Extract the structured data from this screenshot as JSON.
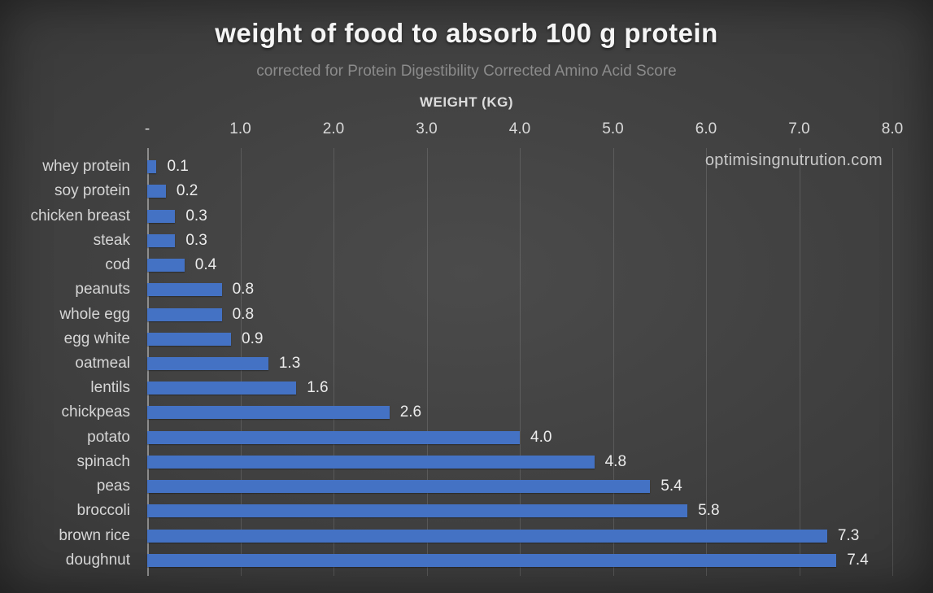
{
  "chart_data": {
    "type": "bar",
    "orientation": "horizontal",
    "title": "weight of food to absorb 100 g protein",
    "subtitle": "corrected for Protein Digestibility Corrected Amino Acid Score",
    "xlabel": "WEIGHT (KG)",
    "ylabel": "",
    "xlim": [
      0,
      8
    ],
    "tick_labels": [
      "-",
      "1.0",
      "2.0",
      "3.0",
      "4.0",
      "5.0",
      "6.0",
      "7.0",
      "8.0"
    ],
    "grid": true,
    "legend": false,
    "watermark": "optimisingnutrution.com",
    "categories": [
      "whey protein",
      "soy protein",
      "chicken breast",
      "steak",
      "cod",
      "peanuts",
      "whole egg",
      "egg white",
      "oatmeal",
      "lentils",
      "chickpeas",
      "potato",
      "spinach",
      "peas",
      "broccoli",
      "brown rice",
      "doughnut"
    ],
    "values": [
      0.1,
      0.2,
      0.3,
      0.3,
      0.4,
      0.8,
      0.8,
      0.9,
      1.3,
      1.6,
      2.6,
      4.0,
      4.8,
      5.4,
      5.8,
      7.3,
      7.4
    ],
    "value_labels": [
      "0.1",
      "0.2",
      "0.3",
      "0.3",
      "0.4",
      "0.8",
      "0.8",
      "0.9",
      "1.3",
      "1.6",
      "2.6",
      "4.0",
      "4.8",
      "5.4",
      "5.8",
      "7.3",
      "7.4"
    ],
    "colors": {
      "bar": "#4472c4",
      "background_center": "#4b4b4b",
      "background_edge": "#1f1f1f",
      "title_text": "#f5f5f5",
      "subtitle_text": "#8b8b8b",
      "label_text": "#d6d6d6"
    }
  }
}
